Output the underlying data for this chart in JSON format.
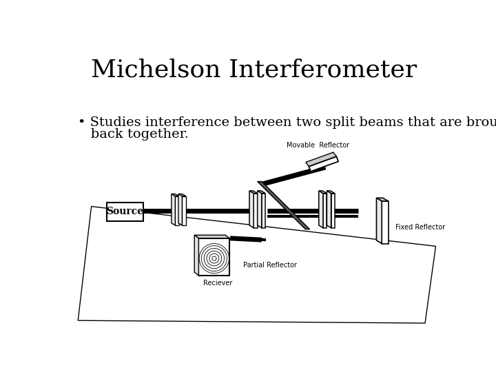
{
  "title": "Michelson Interferometer",
  "bullet_line1": "• Studies interference between two split beams that are brought",
  "bullet_line2": "   back together.",
  "bg_color": "#ffffff",
  "title_fontsize": 26,
  "bullet_fontsize": 14,
  "label_fontsize": 7,
  "labels": {
    "source": "Source",
    "movable": "Movable  Reflector",
    "partial": "Partial Reflector",
    "fixed": "Fixed Reflector",
    "receiver": "Reciever"
  }
}
